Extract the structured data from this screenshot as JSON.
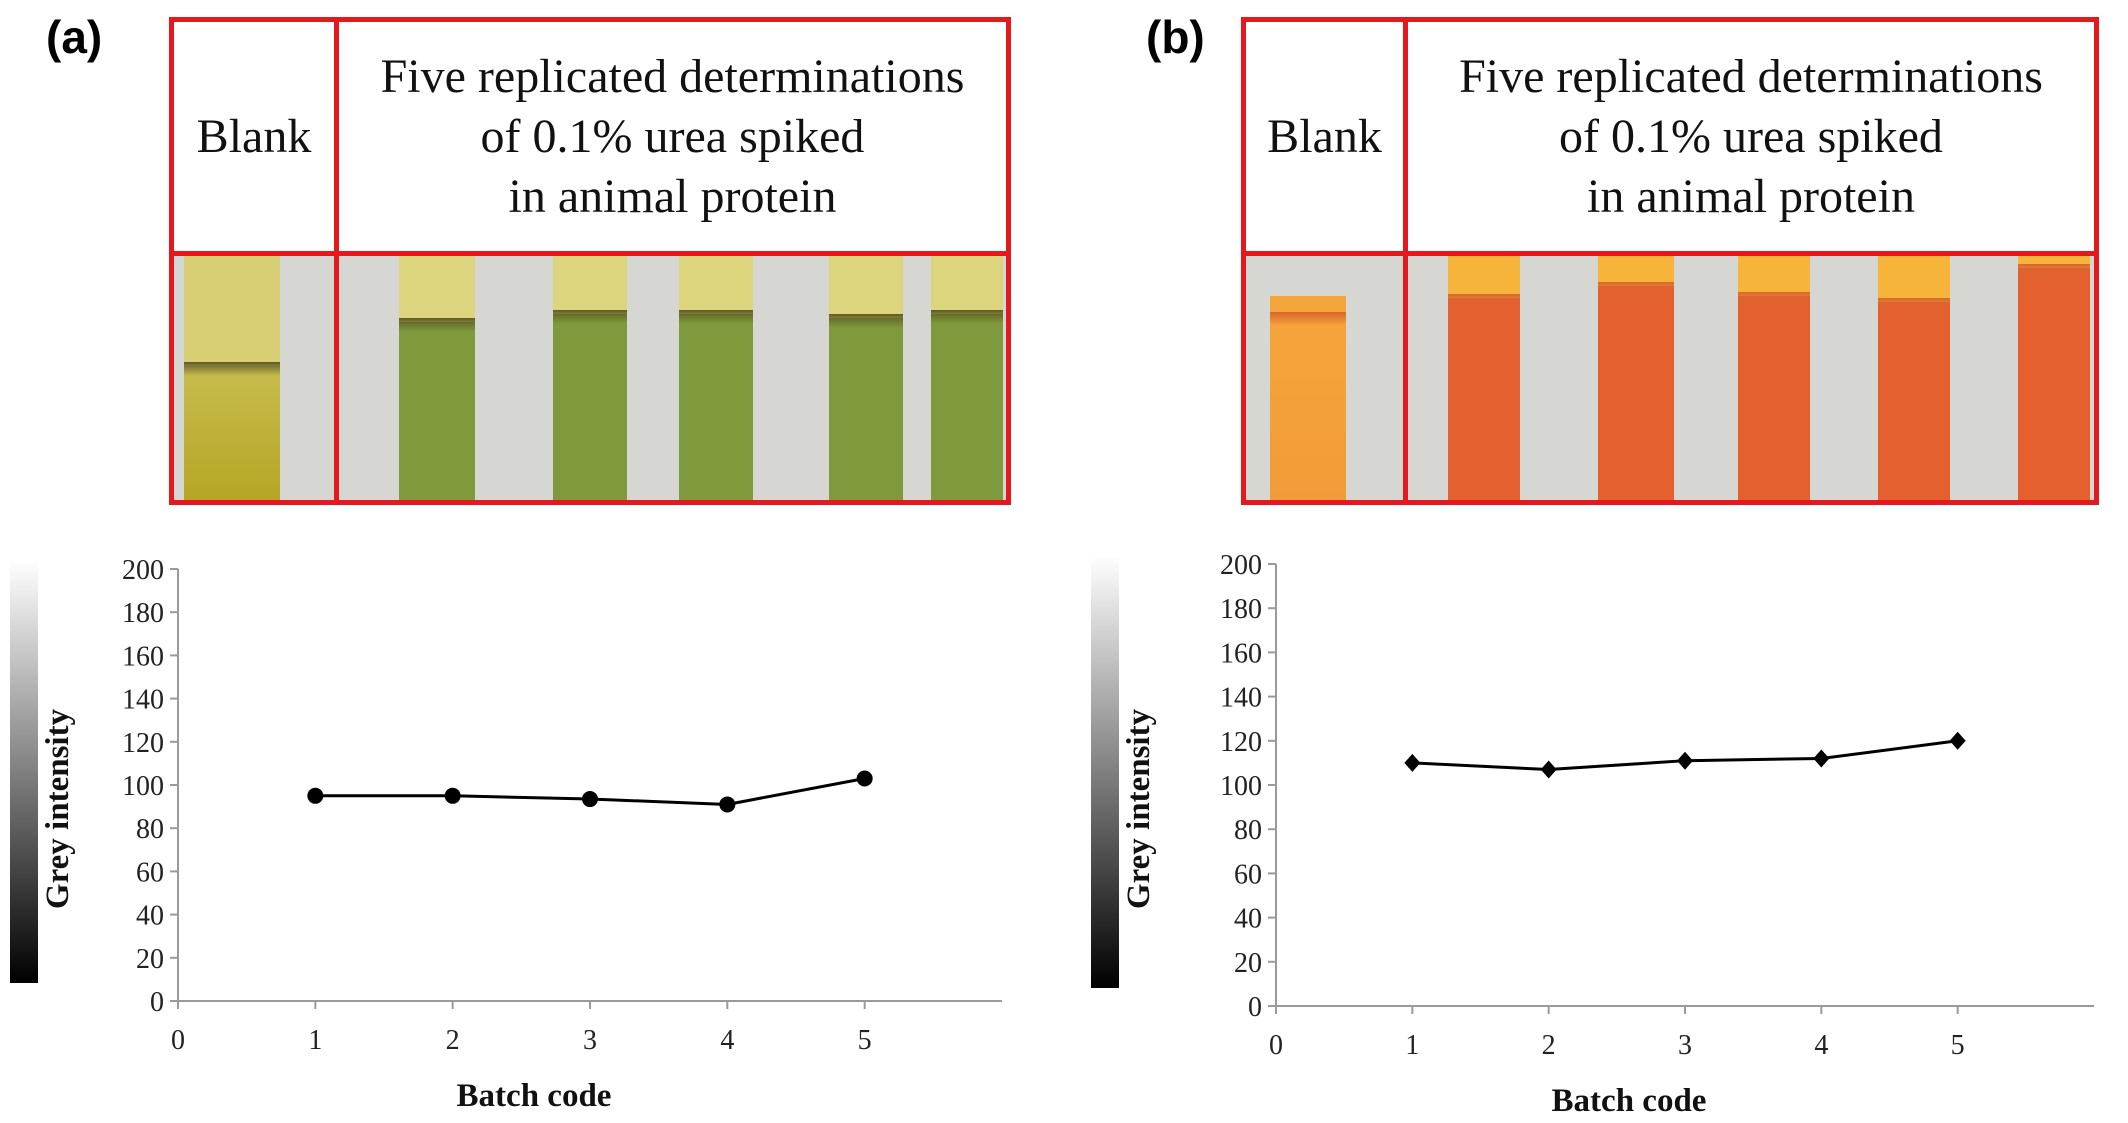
{
  "panels": [
    {
      "label": "(a)",
      "header_blank": "Blank",
      "header_title": "Five replicated determinations\nof 0.1% urea spiked\nin animal protein",
      "strip_colors": {
        "blank_top": "#d8cf74",
        "blank_bottom": "#b5a624",
        "sample_top": "#dcd57e",
        "sample_body": "#7f9a3c",
        "band": "#5c5a22",
        "background": "#d6d6d2"
      }
    },
    {
      "label": "(b)",
      "header_blank": "Blank",
      "header_title": "Five replicated determinations\nof 0.1% urea spiked\nin animal protein",
      "strip_colors": {
        "blank_top": "#f5a63b",
        "blank_bottom": "#f29b3a",
        "sample_top": "#f7b43a",
        "sample_body": "#e5602f",
        "band": "#d9652e",
        "background": "#d6d6d2"
      }
    }
  ],
  "chart_data": [
    {
      "type": "line",
      "panel": "(a)",
      "xlabel": "Batch code",
      "ylabel": "Grey intensity",
      "x_ticks": [
        "0",
        "1",
        "2",
        "3",
        "4",
        "5"
      ],
      "y_ticks": [
        "0",
        "20",
        "40",
        "60",
        "80",
        "100",
        "120",
        "140",
        "160",
        "180",
        "200"
      ],
      "xlim": [
        0,
        6
      ],
      "ylim": [
        0,
        200
      ],
      "marker": "circle",
      "series": [
        {
          "x": [
            1,
            2,
            3,
            4,
            5
          ],
          "values": [
            95,
            95,
            93.5,
            91,
            103
          ]
        }
      ]
    },
    {
      "type": "line",
      "panel": "(b)",
      "xlabel": "Batch code",
      "ylabel": "Grey intensity",
      "x_ticks": [
        "0",
        "1",
        "2",
        "3",
        "4",
        "5"
      ],
      "y_ticks": [
        "0",
        "20",
        "40",
        "60",
        "80",
        "100",
        "120",
        "140",
        "160",
        "180",
        "200"
      ],
      "xlim": [
        0,
        6
      ],
      "ylim": [
        0,
        200
      ],
      "marker": "diamond",
      "series": [
        {
          "x": [
            1,
            2,
            3,
            4,
            5
          ],
          "values": [
            110,
            107,
            111,
            112,
            120
          ]
        }
      ]
    }
  ]
}
